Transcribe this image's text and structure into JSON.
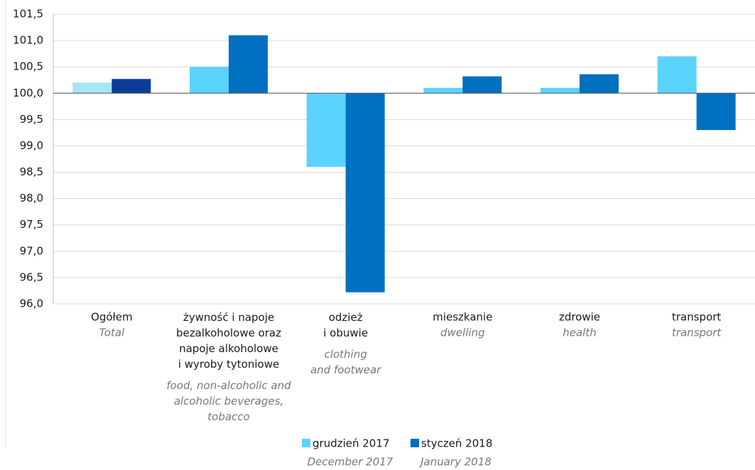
{
  "chart_data": {
    "type": "bar",
    "categories": [
      "Ogółem",
      "żywność i napoje\nbezalkoholowe oraz\nnapoje alkoholowe\ni wyroby tytoniowe",
      "odzież\ni obuwie",
      "mieszkanie",
      "zdrowie",
      "transport"
    ],
    "categories_en": [
      "Total",
      "food, non-alcoholic and\nalcoholic beverages,\ntobacco",
      "clothing\nand footwear",
      "dwelling",
      "health",
      "transport"
    ],
    "series": [
      {
        "name": "grudzień 2017",
        "name_en": "December 2017",
        "color": "#5bd3ff",
        "colors": [
          "#a8e4f7",
          "#5bd3ff",
          "#5bd3ff",
          "#5bd3ff",
          "#5bd3ff",
          "#5bd3ff"
        ],
        "values": [
          100.2,
          100.5,
          98.6,
          100.1,
          100.1,
          100.7
        ]
      },
      {
        "name": "styczeń 2018",
        "name_en": "January 2018",
        "color": "#0070c0",
        "colors": [
          "#0a3d9a",
          "#0070c0",
          "#0070c0",
          "#0070c0",
          "#0070c0",
          "#0070c0"
        ],
        "values": [
          100.27,
          101.1,
          96.22,
          100.32,
          100.36,
          99.3
        ]
      }
    ],
    "baseline": 100,
    "ylim": [
      96,
      101.5
    ],
    "yticks": [
      {
        "value": 96,
        "label": "96,0"
      },
      {
        "value": 96.5,
        "label": "96,5"
      },
      {
        "value": 97,
        "label": "97,0"
      },
      {
        "value": 97.5,
        "label": "97,5"
      },
      {
        "value": 98,
        "label": "98,0"
      },
      {
        "value": 98.5,
        "label": "98,5"
      },
      {
        "value": 99,
        "label": "99,0"
      },
      {
        "value": 99.5,
        "label": "99,5"
      },
      {
        "value": 100,
        "label": "100,0"
      },
      {
        "value": 100.5,
        "label": "100,5"
      },
      {
        "value": 101,
        "label": "101,0"
      },
      {
        "value": 101.5,
        "label": "101,5"
      }
    ],
    "grid": true
  }
}
